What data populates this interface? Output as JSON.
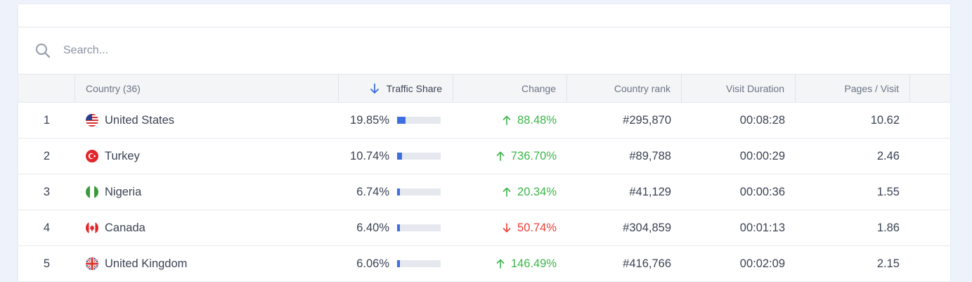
{
  "search": {
    "placeholder": "Search..."
  },
  "columns": {
    "country": "Country (36)",
    "traffic_share": "Traffic Share",
    "change": "Change",
    "country_rank": "Country rank",
    "visit_duration": "Visit Duration",
    "pages_per_visit": "Pages / Visit"
  },
  "colors": {
    "up": "#3cb64a",
    "down": "#ee3e36",
    "bar": "#3e6fe0"
  },
  "rows": [
    {
      "rank": "1",
      "country": "United States",
      "flag": "us-flag-icon",
      "share": "19.85%",
      "share_value": 0.1985,
      "change": "88.48%",
      "change_dir": "up",
      "country_rank": "#295,870",
      "duration": "00:08:28",
      "pages": "10.62"
    },
    {
      "rank": "2",
      "country": "Turkey",
      "flag": "turkey-flag-icon",
      "share": "10.74%",
      "share_value": 0.1074,
      "change": "736.70%",
      "change_dir": "up",
      "country_rank": "#89,788",
      "duration": "00:00:29",
      "pages": "2.46"
    },
    {
      "rank": "3",
      "country": "Nigeria",
      "flag": "nigeria-flag-icon",
      "share": "6.74%",
      "share_value": 0.0674,
      "change": "20.34%",
      "change_dir": "up",
      "country_rank": "#41,129",
      "duration": "00:00:36",
      "pages": "1.55"
    },
    {
      "rank": "4",
      "country": "Canada",
      "flag": "canada-flag-icon",
      "share": "6.40%",
      "share_value": 0.064,
      "change": "50.74%",
      "change_dir": "down",
      "country_rank": "#304,859",
      "duration": "00:01:13",
      "pages": "1.86"
    },
    {
      "rank": "5",
      "country": "United Kingdom",
      "flag": "uk-flag-icon",
      "share": "6.06%",
      "share_value": 0.0606,
      "change": "146.49%",
      "change_dir": "up",
      "country_rank": "#416,766",
      "duration": "00:02:09",
      "pages": "2.15"
    }
  ]
}
